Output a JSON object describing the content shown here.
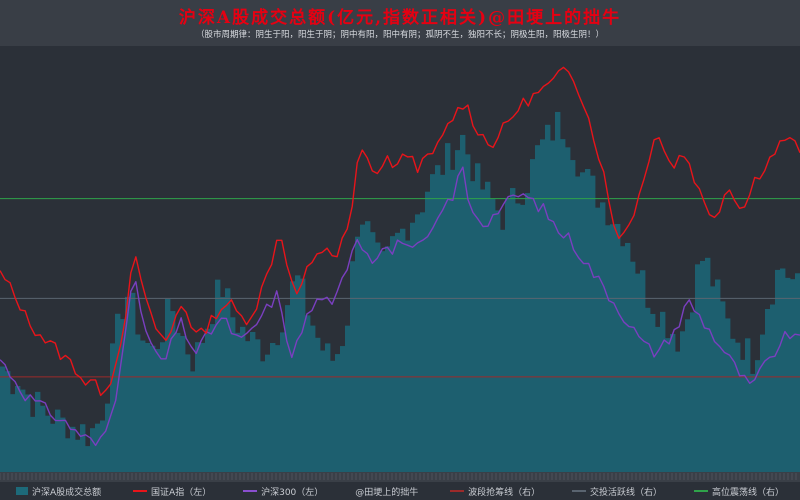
{
  "title": "沪深A股成交总额(亿元,指数正相关)@田埂上的拙牛",
  "subtitle": "（股市周期律：阴生于阳，阳生于阴；阴中有阳，阳中有阴；孤阴不生，独阳不长；阴极生阳，阳极生阴！）",
  "colors": {
    "background": "#2b3038",
    "volume": "#1d5f6f",
    "szzs": "#e8141a",
    "hs300": "#7a3fc0",
    "line_low": "#9c2a2a",
    "line_mid": "#5a6470",
    "line_high": "#2fa34a"
  },
  "legend": [
    {
      "label": "沪深A股成交总额",
      "kind": "box",
      "color": "#1d6a7a"
    },
    {
      "label": "国证A指（左）",
      "kind": "line",
      "color": "#e8141a"
    },
    {
      "label": "沪深300（左）",
      "kind": "line",
      "color": "#8a4fd0"
    },
    {
      "label": "@田埂上的拙牛",
      "kind": "none",
      "color": ""
    },
    {
      "label": "波段抢筹线（右）",
      "kind": "line",
      "color": "#9c2a2a"
    },
    {
      "label": "交投活跃线（右）",
      "kind": "line",
      "color": "#5a6470"
    },
    {
      "label": "高位震荡线（右）",
      "kind": "line",
      "color": "#2fa34a"
    }
  ],
  "chart_data": {
    "type": "line",
    "x_points": 160,
    "series": [
      {
        "name": "沪深A股成交总额",
        "kind": "area",
        "values": [
          0.28,
          0.26,
          0.24,
          0.25,
          0.22,
          0.2,
          0.18,
          0.17,
          0.16,
          0.15,
          0.14,
          0.13,
          0.12,
          0.12,
          0.11,
          0.1,
          0.1,
          0.09,
          0.1,
          0.12,
          0.16,
          0.22,
          0.3,
          0.38,
          0.45,
          0.48,
          0.44,
          0.4,
          0.36,
          0.34,
          0.32,
          0.35,
          0.38,
          0.42,
          0.44,
          0.4,
          0.36,
          0.33,
          0.3,
          0.32,
          0.36,
          0.4,
          0.44,
          0.48,
          0.5,
          0.46,
          0.42,
          0.4,
          0.38,
          0.36,
          0.35,
          0.34,
          0.33,
          0.34,
          0.35,
          0.38,
          0.42,
          0.46,
          0.5,
          0.52,
          0.48,
          0.44,
          0.4,
          0.36,
          0.33,
          0.31,
          0.3,
          0.32,
          0.36,
          0.42,
          0.55,
          0.68,
          0.7,
          0.66,
          0.62,
          0.58,
          0.56,
          0.58,
          0.62,
          0.64,
          0.66,
          0.68,
          0.7,
          0.72,
          0.74,
          0.78,
          0.8,
          0.82,
          0.84,
          0.86,
          0.88,
          0.9,
          0.92,
          0.88,
          0.84,
          0.8,
          0.78,
          0.76,
          0.74,
          0.72,
          0.7,
          0.72,
          0.74,
          0.76,
          0.78,
          0.8,
          0.84,
          0.88,
          0.9,
          0.92,
          0.94,
          0.96,
          0.95,
          0.94,
          0.9,
          0.86,
          0.82,
          0.8,
          0.78,
          0.76,
          0.74,
          0.72,
          0.7,
          0.68,
          0.66,
          0.64,
          0.6,
          0.56,
          0.52,
          0.48,
          0.46,
          0.44,
          0.42,
          0.4,
          0.38,
          0.36,
          0.38,
          0.42,
          0.48,
          0.54,
          0.58,
          0.56,
          0.52,
          0.48,
          0.44,
          0.4,
          0.38,
          0.36,
          0.34,
          0.32,
          0.3,
          0.34,
          0.4,
          0.46,
          0.5,
          0.54,
          0.56,
          0.54,
          0.52,
          0.5
        ]
      },
      {
        "name": "国证A指（左）",
        "kind": "line",
        "values": [
          0.54,
          0.52,
          0.5,
          0.47,
          0.45,
          0.42,
          0.4,
          0.38,
          0.37,
          0.35,
          0.34,
          0.33,
          0.31,
          0.3,
          0.29,
          0.27,
          0.25,
          0.23,
          0.24,
          0.22,
          0.21,
          0.23,
          0.25,
          0.3,
          0.38,
          0.46,
          0.56,
          0.58,
          0.5,
          0.44,
          0.4,
          0.38,
          0.36,
          0.34,
          0.4,
          0.44,
          0.46,
          0.42,
          0.38,
          0.36,
          0.38,
          0.4,
          0.42,
          0.44,
          0.45,
          0.46,
          0.44,
          0.42,
          0.41,
          0.42,
          0.44,
          0.48,
          0.52,
          0.56,
          0.62,
          0.66,
          0.6,
          0.52,
          0.48,
          0.5,
          0.54,
          0.56,
          0.58,
          0.6,
          0.62,
          0.6,
          0.58,
          0.62,
          0.66,
          0.7,
          0.84,
          0.88,
          0.86,
          0.84,
          0.82,
          0.84,
          0.86,
          0.85,
          0.84,
          0.86,
          0.88,
          0.86,
          0.84,
          0.85,
          0.86,
          0.88,
          0.9,
          0.92,
          0.96,
          0.98,
          1.0,
          1.02,
          1.0,
          0.96,
          0.94,
          0.92,
          0.9,
          0.91,
          0.93,
          0.95,
          0.97,
          0.99,
          1.01,
          1.02,
          1.03,
          1.04,
          1.05,
          1.06,
          1.07,
          1.08,
          1.1,
          1.12,
          1.11,
          1.08,
          1.04,
          1.0,
          0.95,
          0.9,
          0.85,
          0.78,
          0.7,
          0.66,
          0.64,
          0.67,
          0.7,
          0.74,
          0.78,
          0.84,
          0.92,
          0.94,
          0.9,
          0.86,
          0.84,
          0.86,
          0.88,
          0.86,
          0.82,
          0.78,
          0.74,
          0.72,
          0.7,
          0.72,
          0.76,
          0.78,
          0.76,
          0.74,
          0.72,
          0.76,
          0.8,
          0.82,
          0.84,
          0.86,
          0.88,
          0.9,
          0.92,
          0.91,
          0.9,
          0.89
        ]
      },
      {
        "name": "沪深300（左）",
        "kind": "line",
        "values": [
          0.3,
          0.28,
          0.26,
          0.24,
          0.22,
          0.2,
          0.19,
          0.18,
          0.17,
          0.16,
          0.15,
          0.14,
          0.13,
          0.12,
          0.11,
          0.1,
          0.09,
          0.08,
          0.07,
          0.06,
          0.07,
          0.1,
          0.14,
          0.2,
          0.3,
          0.4,
          0.48,
          0.5,
          0.44,
          0.38,
          0.34,
          0.31,
          0.3,
          0.3,
          0.34,
          0.38,
          0.4,
          0.37,
          0.34,
          0.32,
          0.34,
          0.36,
          0.38,
          0.4,
          0.41,
          0.4,
          0.38,
          0.36,
          0.35,
          0.36,
          0.38,
          0.4,
          0.42,
          0.44,
          0.46,
          0.48,
          0.42,
          0.36,
          0.32,
          0.34,
          0.38,
          0.42,
          0.44,
          0.46,
          0.48,
          0.46,
          0.44,
          0.48,
          0.52,
          0.56,
          0.62,
          0.64,
          0.62,
          0.6,
          0.58,
          0.6,
          0.62,
          0.61,
          0.6,
          0.62,
          0.64,
          0.62,
          0.6,
          0.61,
          0.62,
          0.64,
          0.66,
          0.68,
          0.72,
          0.74,
          0.76,
          0.8,
          0.84,
          0.74,
          0.72,
          0.7,
          0.68,
          0.69,
          0.7,
          0.72,
          0.73,
          0.74,
          0.75,
          0.76,
          0.76,
          0.75,
          0.74,
          0.73,
          0.72,
          0.7,
          0.68,
          0.66,
          0.65,
          0.64,
          0.62,
          0.6,
          0.58,
          0.56,
          0.54,
          0.52,
          0.5,
          0.48,
          0.46,
          0.44,
          0.42,
          0.4,
          0.38,
          0.36,
          0.34,
          0.33,
          0.32,
          0.33,
          0.34,
          0.36,
          0.38,
          0.4,
          0.44,
          0.46,
          0.44,
          0.42,
          0.4,
          0.38,
          0.36,
          0.34,
          0.32,
          0.3,
          0.28,
          0.26,
          0.24,
          0.22,
          0.24,
          0.26,
          0.28,
          0.3,
          0.32,
          0.34,
          0.36,
          0.37,
          0.36,
          0.35
        ]
      }
    ],
    "hlines": [
      {
        "name": "波段抢筹线（右）",
        "value": 0.25,
        "color": "#9c2a2a"
      },
      {
        "name": "交投活跃线（右）",
        "value": 0.47,
        "color": "#5a6470"
      },
      {
        "name": "高位震荡线（右）",
        "value": 0.75,
        "color": "#2fa34a"
      }
    ]
  }
}
